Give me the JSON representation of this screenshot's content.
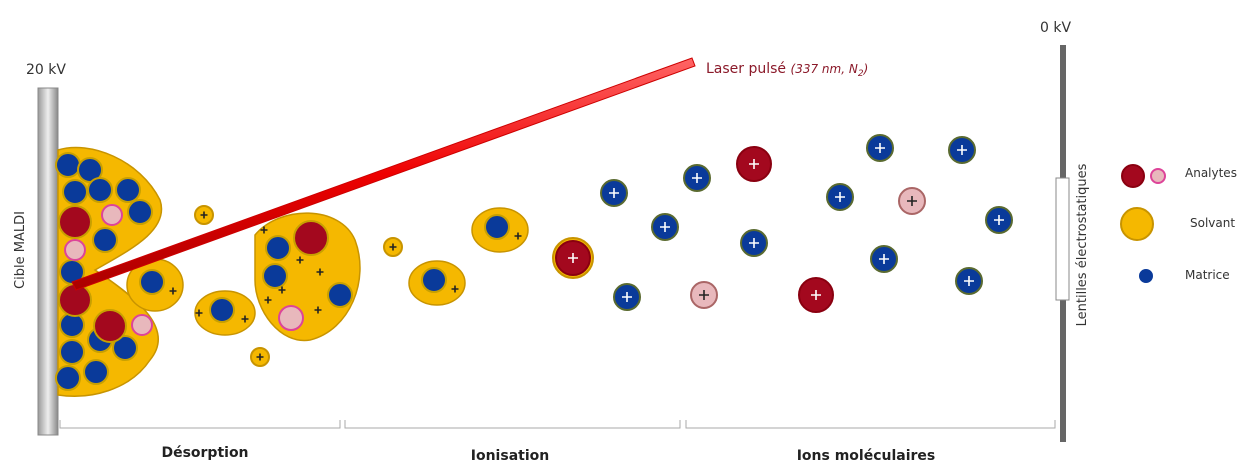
{
  "target": {
    "voltage": "20 kV",
    "label": "Cible MALDI"
  },
  "lens": {
    "voltage": "0 kV",
    "label": "Lentilles électrostatiques"
  },
  "laser": {
    "label": "Laser pulsé",
    "detail": "(337 nm, N",
    "subscript": "2",
    "close": ")"
  },
  "legend": {
    "analytes": "Analytes",
    "solvent": "Solvant",
    "matrix": "Matrice"
  },
  "stages": [
    "Désorption",
    "Ionisation",
    "Ions moléculaires"
  ]
}
